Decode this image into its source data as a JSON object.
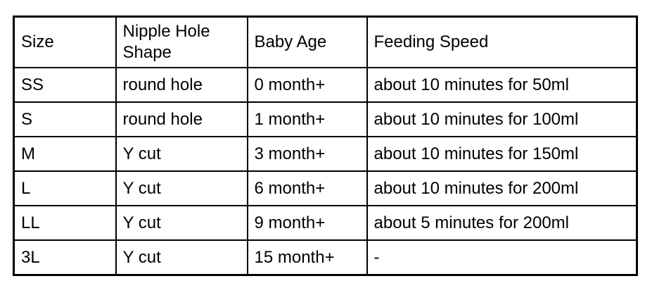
{
  "table": {
    "headers": {
      "size": "Size",
      "shape": "Nipple Hole Shape",
      "age": "Baby Age",
      "speed": "Feeding Speed"
    },
    "rows": [
      [
        "SS",
        "round hole",
        "0 month+",
        "about 10 minutes for 50ml"
      ],
      [
        "S",
        "round hole",
        "1 month+",
        "about 10 minutes for 100ml"
      ],
      [
        "M",
        "Y cut",
        "3 month+",
        "about 10 minutes for 150ml"
      ],
      [
        "L",
        "Y cut",
        "6 month+",
        "about 10 minutes for 200ml"
      ],
      [
        "LL",
        "Y cut",
        "9 month+",
        "about 5 minutes for 200ml"
      ],
      [
        "3L",
        "Y cut",
        "15 month+",
        "-"
      ]
    ],
    "colors": {
      "border": "#000000",
      "text": "#000000",
      "background": "#ffffff"
    }
  }
}
